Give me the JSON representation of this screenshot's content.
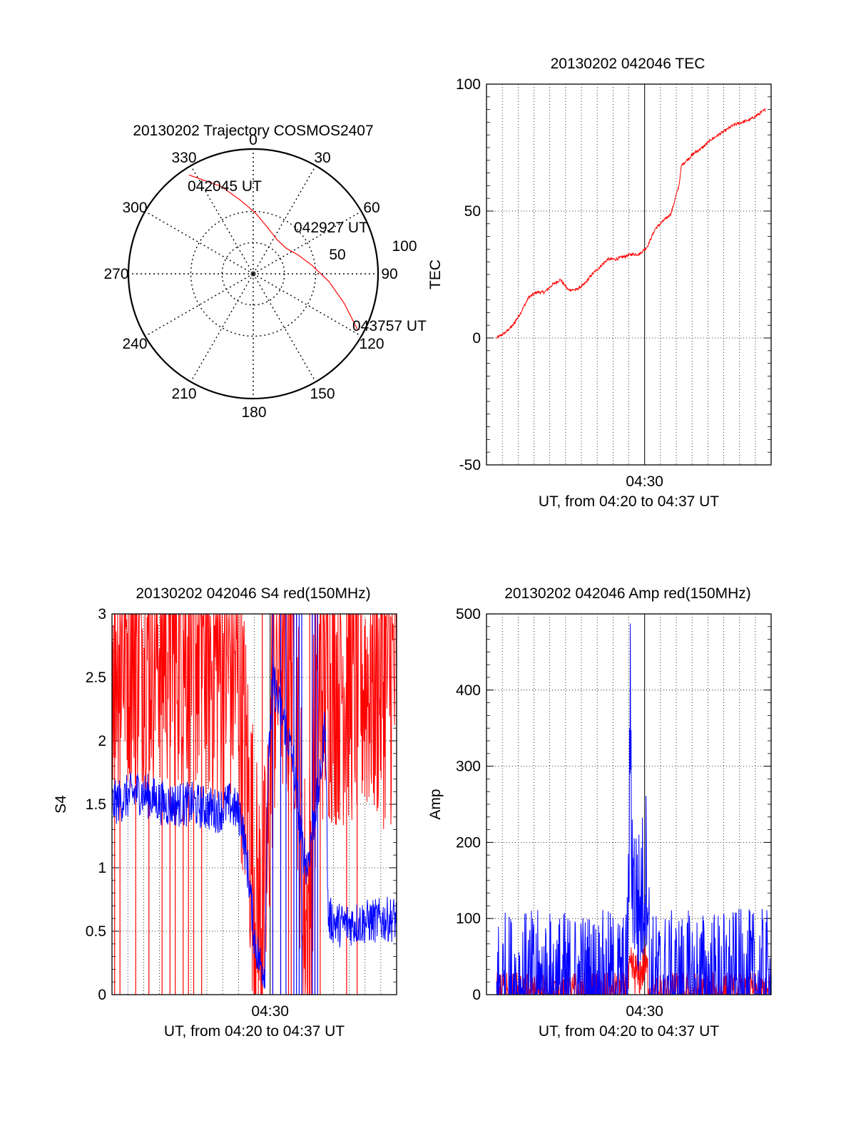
{
  "chart_data": [
    {
      "type": "polar",
      "title": "20130202 Trajectory COSMOS2407",
      "azimuth_labels": [
        "0",
        "30",
        "60",
        "90",
        "120",
        "150",
        "180",
        "210",
        "240",
        "270",
        "300",
        "330"
      ],
      "ring_labels": [
        "50",
        "100"
      ],
      "grid": true,
      "series": [
        {
          "color": "#ff0000",
          "points": [
            {
              "azimuth": 327,
              "elevation": 5
            },
            {
              "azimuth": 340,
              "elevation": 23
            },
            {
              "azimuth": 350,
              "elevation": 36
            },
            {
              "azimuth": 2,
              "elevation": 46
            },
            {
              "azimuth": 17,
              "elevation": 55
            },
            {
              "azimuth": 35,
              "elevation": 60
            },
            {
              "azimuth": 52,
              "elevation": 60
            },
            {
              "azimuth": 67,
              "elevation": 55
            },
            {
              "azimuth": 82,
              "elevation": 47
            },
            {
              "azimuth": 96,
              "elevation": 35
            },
            {
              "azimuth": 108,
              "elevation": 21
            },
            {
              "azimuth": 118,
              "elevation": 5
            }
          ]
        }
      ],
      "annotations": [
        {
          "text": "042045 UT",
          "azimuth": 327,
          "elevation": 5
        },
        {
          "text": "042927 UT",
          "azimuth": 52,
          "elevation": 60
        },
        {
          "text": "043757 UT",
          "azimuth": 118,
          "elevation": 5
        }
      ]
    },
    {
      "type": "line",
      "title": "20130202 042046 TEC",
      "xlabel": "UT, from 04:20 to 04:37 UT",
      "ylabel": "TEC",
      "xlim": [
        4.3333,
        4.6333
      ],
      "ylim": [
        -50,
        100
      ],
      "xticks": [
        {
          "value": 4.5,
          "label": "04:30"
        }
      ],
      "yticks": [
        -50,
        0,
        50,
        100
      ],
      "grid": true,
      "noise": 0.6,
      "series": [
        {
          "color": "#ff0000",
          "x": [
            4.3439,
            4.3528,
            4.3611,
            4.3694,
            4.3778,
            4.3861,
            4.3944,
            4.4028,
            4.4111,
            4.4194,
            4.4278,
            4.4361,
            4.4444,
            4.4528,
            4.4611,
            4.4694,
            4.4778,
            4.4861,
            4.4944,
            4.5028,
            4.5111,
            4.5194,
            4.5278,
            4.5361,
            4.5389,
            4.5444,
            4.5528,
            4.5611,
            4.5694,
            4.5778,
            4.5861,
            4.5944,
            4.6028,
            4.6111,
            4.6194,
            4.6275
          ],
          "values": [
            0,
            2,
            5,
            10,
            16,
            18,
            18,
            21,
            23,
            19,
            19,
            21,
            25,
            28,
            31,
            31,
            32,
            33,
            33,
            36,
            43,
            46,
            49,
            60,
            68,
            70,
            73,
            75,
            78,
            80,
            82,
            84,
            85,
            86,
            88,
            90
          ]
        }
      ]
    },
    {
      "type": "line",
      "title": "20130202 042046 S4 red(150MHz)",
      "xlabel": "UT, from 04:20 to 04:37 UT",
      "ylabel": "S4",
      "xlim": [
        4.3333,
        4.6333
      ],
      "ylim": [
        0,
        3
      ],
      "xticks": [
        {
          "value": 4.5,
          "label": "04:30"
        }
      ],
      "yticks": [
        "0",
        "0.5",
        "1",
        "1.5",
        "2",
        "2.5",
        "3"
      ],
      "grid": true,
      "series": [
        {
          "color": "#ff0000",
          "noise": 1.2,
          "clip": [
            0,
            3
          ],
          "x": [
            4.3333,
            4.4167,
            4.4417,
            4.4583,
            4.4667,
            4.4806,
            4.4861,
            4.4917,
            4.4944,
            4.4972,
            4.5028,
            4.5111,
            4.5194,
            4.5278,
            4.5333,
            4.5361,
            4.5389,
            4.5417,
            4.5472,
            4.5528,
            4.5639,
            4.6333
          ],
          "values": [
            2.8,
            2.8,
            2.6,
            2.6,
            2.5,
            1.2,
            0.7,
            0.55,
            0.7,
            1.0,
            2.4,
            2.7,
            2.6,
            2.5,
            1.0,
            0.7,
            0.65,
            0.8,
            2.0,
            2.5,
            2.5,
            2.5
          ],
          "dropouts": [
            4.3361,
            4.3417,
            4.3583,
            4.3722,
            4.3861,
            4.3944,
            4.4,
            4.4083,
            4.4139,
            4.4194,
            4.4278,
            4.4917,
            4.5028,
            4.5111,
            4.5194,
            4.5222,
            4.5417,
            4.5444,
            4.5472,
            4.5528,
            4.5806,
            4.5917
          ]
        },
        {
          "color": "#0000ff",
          "noise": 0.18,
          "clip": [
            0,
            3
          ],
          "x": [
            4.3333,
            4.3611,
            4.3889,
            4.4167,
            4.4444,
            4.4583,
            4.4694,
            4.4778,
            4.4833,
            4.4889,
            4.4944,
            4.4972,
            4.5028,
            4.5083,
            4.5167,
            4.525,
            4.5333,
            4.5389,
            4.5444,
            4.5528,
            4.5583,
            4.5611,
            4.5722,
            4.6333
          ],
          "values": [
            1.5,
            1.6,
            1.5,
            1.5,
            1.45,
            1.5,
            1.4,
            0.9,
            0.45,
            0.25,
            0.2,
            1.6,
            2.5,
            2.3,
            2.1,
            1.8,
            1.2,
            1.0,
            1.3,
            1.7,
            2.2,
            0.6,
            0.55,
            0.6
          ],
          "dropouts": [
            4.5028,
            4.5111,
            4.5167,
            4.525,
            4.5278,
            4.5306,
            4.5333,
            4.5444,
            4.5472,
            4.55
          ]
        }
      ]
    },
    {
      "type": "line",
      "title": "20130202 042046 Amp red(150MHz)",
      "xlabel": "UT, from 04:20 to 04:37 UT",
      "ylabel": "Amp",
      "xlim": [
        4.3333,
        4.6333
      ],
      "ylim": [
        0,
        500
      ],
      "xticks": [
        {
          "value": 4.5,
          "label": "04:30"
        }
      ],
      "yticks": [
        0,
        100,
        200,
        300,
        400,
        500
      ],
      "grid": true,
      "series": [
        {
          "color": "#ff0000",
          "noise": 30,
          "clip": [
            0,
            500
          ],
          "x": [
            4.3439,
            4.4806,
            4.4833,
            4.4861,
            4.4889,
            4.4944,
            4.5,
            4.5028,
            4.5056,
            4.6333
          ],
          "values": [
            0,
            0,
            20,
            35,
            30,
            25,
            40,
            30,
            0,
            0
          ]
        },
        {
          "color": "#0000ff",
          "noise": 110,
          "clip": [
            0,
            500
          ],
          "x": [
            4.3439,
            4.4806,
            4.4833,
            4.4847,
            4.4861,
            4.4889,
            4.4944,
            4.5,
            4.5028,
            4.5056,
            4.5083,
            4.5889,
            4.6333
          ],
          "values": [
            2,
            2,
            120,
            414,
            200,
            140,
            110,
            150,
            180,
            2,
            1,
            3,
            3
          ]
        }
      ]
    }
  ]
}
